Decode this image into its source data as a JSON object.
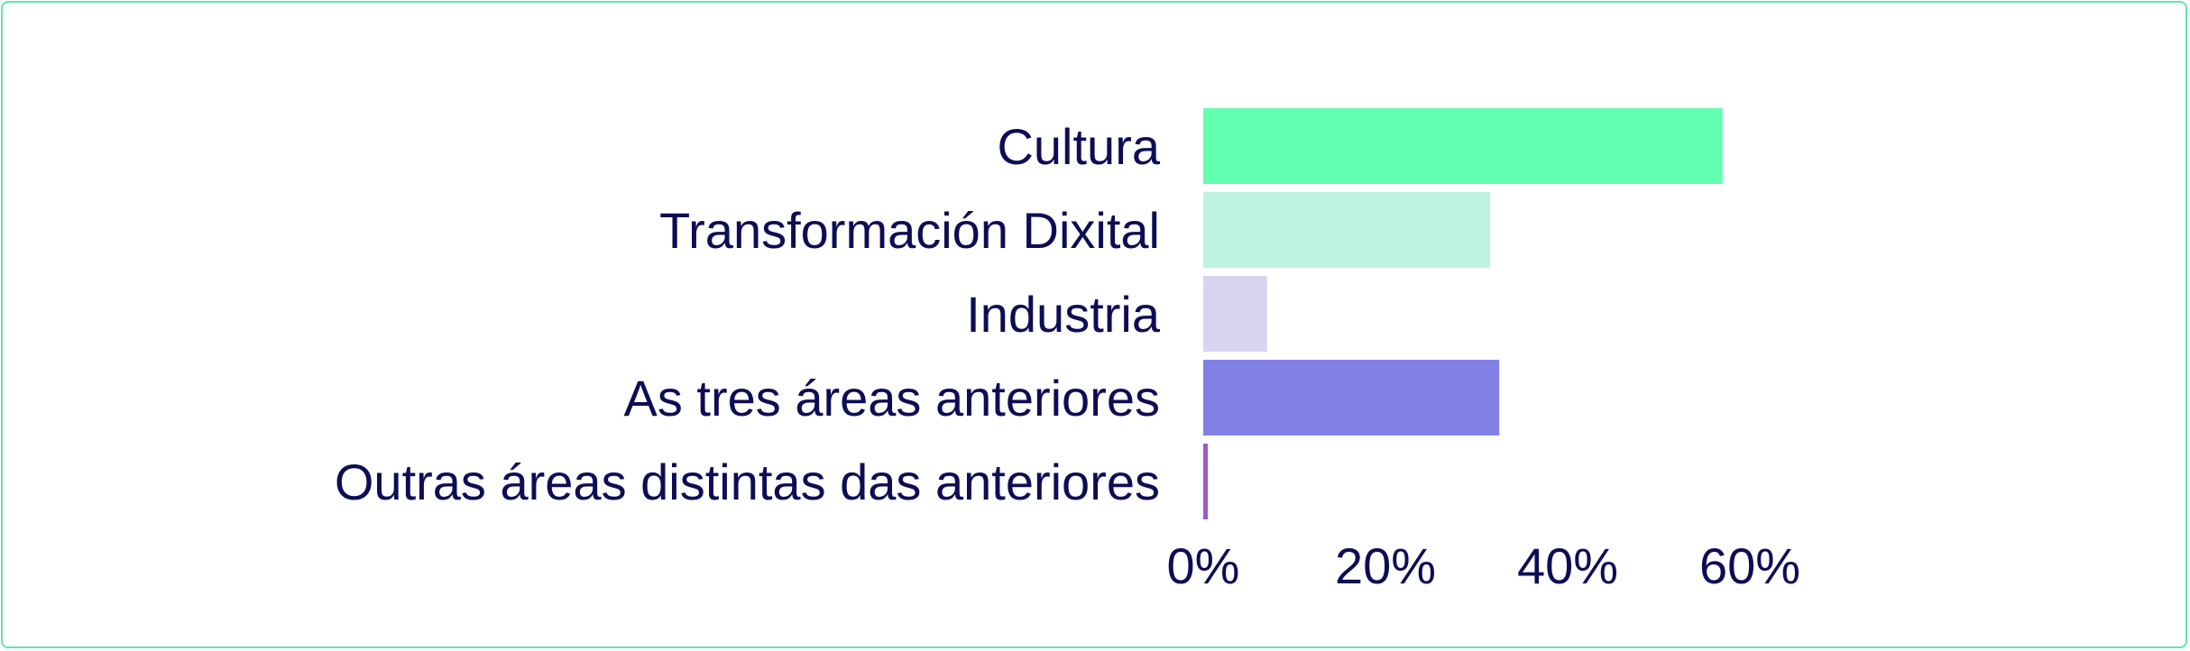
{
  "chart_data": {
    "type": "bar",
    "orientation": "horizontal",
    "title": "",
    "xlabel": "",
    "ylabel": "",
    "categories": [
      "Cultura",
      "Transformación Dixital",
      "Industria",
      "As tres áreas anteriores",
      "Outras áreas distintas das anteriores"
    ],
    "values": [
      57,
      31.5,
      7,
      32.5,
      0.5
    ],
    "value_unit": "%",
    "bar_colors": [
      "#62ffb1",
      "#bdf1e0",
      "#d9d3ef",
      "#8181e8",
      "#9b59c9"
    ],
    "xlim": [
      0,
      60
    ],
    "xticks": [
      0,
      20,
      40,
      60
    ],
    "xtick_labels": [
      "0%",
      "20%",
      "40%",
      "60%"
    ],
    "grid": false,
    "legend": "none"
  },
  "colors": {
    "border": "#5ee6b0",
    "text": "#0d0d55"
  }
}
